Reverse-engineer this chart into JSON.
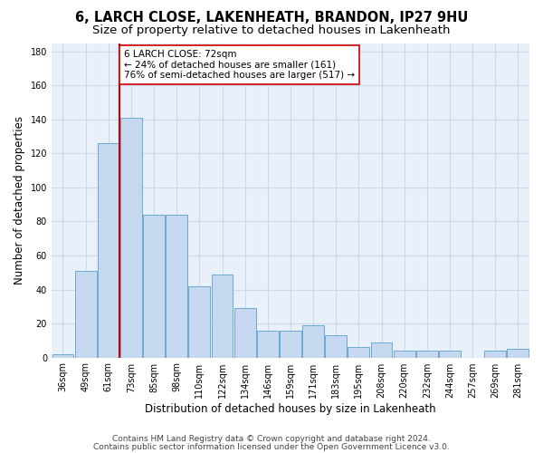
{
  "title_line1": "6, LARCH CLOSE, LAKENHEATH, BRANDON, IP27 9HU",
  "title_line2": "Size of property relative to detached houses in Lakenheath",
  "xlabel": "Distribution of detached houses by size in Lakenheath",
  "ylabel": "Number of detached properties",
  "categories": [
    "36sqm",
    "49sqm",
    "61sqm",
    "73sqm",
    "85sqm",
    "98sqm",
    "110sqm",
    "122sqm",
    "134sqm",
    "146sqm",
    "159sqm",
    "171sqm",
    "183sqm",
    "195sqm",
    "208sqm",
    "220sqm",
    "232sqm",
    "244sqm",
    "257sqm",
    "269sqm",
    "281sqm"
  ],
  "values": [
    2,
    51,
    126,
    141,
    84,
    84,
    42,
    49,
    29,
    16,
    16,
    19,
    13,
    6,
    9,
    4,
    4,
    4,
    0,
    4,
    5
  ],
  "bar_color": "#c5d8f0",
  "bar_edge_color": "#6aaad4",
  "background_color": "#e8f0fa",
  "grid_color": "#d0d8e8",
  "marker_line_color": "#cc0000",
  "annotation_text": "6 LARCH CLOSE: 72sqm\n← 24% of detached houses are smaller (161)\n76% of semi-detached houses are larger (517) →",
  "annotation_box_color": "#ffffff",
  "annotation_box_edge_color": "#cc0000",
  "footer_line1": "Contains HM Land Registry data © Crown copyright and database right 2024.",
  "footer_line2": "Contains public sector information licensed under the Open Government Licence v3.0.",
  "ylim": [
    0,
    185
  ],
  "yticks": [
    0,
    20,
    40,
    60,
    80,
    100,
    120,
    140,
    160,
    180
  ],
  "title_fontsize": 10.5,
  "subtitle_fontsize": 9.5,
  "ylabel_fontsize": 8.5,
  "xlabel_fontsize": 8.5,
  "tick_fontsize": 7,
  "annotation_fontsize": 7.5,
  "footer_fontsize": 6.5
}
